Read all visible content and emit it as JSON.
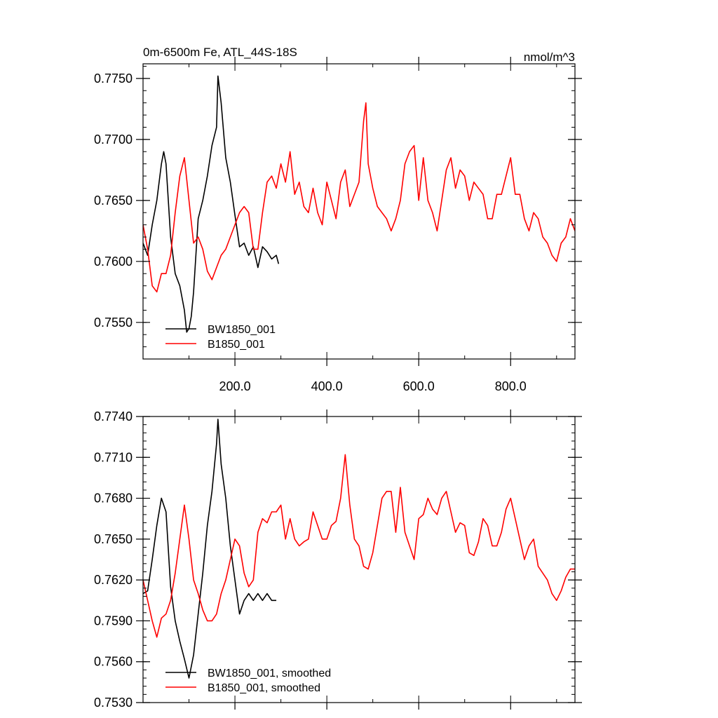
{
  "chart_data": [
    {
      "type": "line",
      "title": "0m-6500m Fe, ATL_44S-18S",
      "units": "nmol/m^3",
      "xlim": [
        0,
        940
      ],
      "ylim": [
        0.752,
        0.7762
      ],
      "x_ticks": [
        200,
        400,
        600,
        800
      ],
      "x_tick_labels": [
        "200.0",
        "400.0",
        "600.0",
        "800.0"
      ],
      "y_ticks": [
        0.755,
        0.76,
        0.765,
        0.77,
        0.775
      ],
      "y_tick_labels": [
        "0.7550",
        "0.7600",
        "0.7650",
        "0.7700",
        "0.7750"
      ],
      "legend_position": "bottom-left",
      "series": [
        {
          "name": "BW1850_001",
          "color": "#000000",
          "x": [
            0,
            10,
            20,
            30,
            40,
            45,
            50,
            55,
            60,
            70,
            80,
            90,
            95,
            100,
            105,
            110,
            120,
            130,
            140,
            150,
            160,
            163,
            170,
            180,
            190,
            200,
            210,
            220,
            230,
            240,
            250,
            260,
            270,
            280,
            290,
            295
          ],
          "y": [
            0.7615,
            0.7605,
            0.763,
            0.765,
            0.768,
            0.769,
            0.768,
            0.765,
            0.762,
            0.759,
            0.758,
            0.756,
            0.7542,
            0.7545,
            0.7555,
            0.7575,
            0.7635,
            0.765,
            0.767,
            0.7695,
            0.771,
            0.7752,
            0.773,
            0.7685,
            0.7665,
            0.7638,
            0.7612,
            0.7615,
            0.7605,
            0.7612,
            0.7595,
            0.7612,
            0.7608,
            0.7602,
            0.7605,
            0.7598
          ]
        },
        {
          "name": "B1850_001",
          "color": "#ff0000",
          "x": [
            0,
            10,
            20,
            30,
            40,
            50,
            60,
            70,
            80,
            90,
            100,
            110,
            120,
            130,
            140,
            150,
            160,
            170,
            180,
            190,
            200,
            210,
            220,
            230,
            240,
            250,
            260,
            270,
            280,
            290,
            300,
            310,
            320,
            330,
            340,
            350,
            360,
            370,
            380,
            390,
            400,
            410,
            420,
            430,
            440,
            450,
            460,
            470,
            480,
            485,
            490,
            500,
            510,
            520,
            530,
            540,
            550,
            560,
            570,
            580,
            590,
            600,
            610,
            620,
            630,
            640,
            650,
            660,
            670,
            680,
            690,
            700,
            710,
            720,
            730,
            740,
            750,
            760,
            770,
            780,
            790,
            800,
            810,
            820,
            830,
            840,
            850,
            860,
            870,
            880,
            890,
            900,
            910,
            920,
            930,
            940
          ],
          "y": [
            0.763,
            0.761,
            0.758,
            0.7575,
            0.759,
            0.759,
            0.7605,
            0.764,
            0.767,
            0.7685,
            0.765,
            0.7615,
            0.762,
            0.761,
            0.7592,
            0.7585,
            0.7595,
            0.7605,
            0.761,
            0.762,
            0.763,
            0.764,
            0.7645,
            0.764,
            0.761,
            0.761,
            0.764,
            0.7665,
            0.767,
            0.766,
            0.768,
            0.7665,
            0.769,
            0.7655,
            0.7665,
            0.7645,
            0.764,
            0.766,
            0.764,
            0.763,
            0.7665,
            0.765,
            0.7635,
            0.7665,
            0.7675,
            0.7645,
            0.7655,
            0.7665,
            0.7715,
            0.773,
            0.768,
            0.766,
            0.7645,
            0.764,
            0.7635,
            0.7625,
            0.7635,
            0.765,
            0.768,
            0.769,
            0.7695,
            0.765,
            0.7685,
            0.765,
            0.764,
            0.7625,
            0.765,
            0.7675,
            0.7685,
            0.766,
            0.7675,
            0.767,
            0.765,
            0.7665,
            0.766,
            0.7655,
            0.7635,
            0.7635,
            0.7655,
            0.7655,
            0.767,
            0.7685,
            0.7655,
            0.7655,
            0.7635,
            0.7625,
            0.764,
            0.7635,
            0.762,
            0.7615,
            0.7605,
            0.76,
            0.7615,
            0.762,
            0.7635,
            0.7625
          ]
        }
      ]
    },
    {
      "type": "line",
      "xlim": [
        0,
        940
      ],
      "ylim": [
        0.753,
        0.774
      ],
      "y_ticks": [
        0.753,
        0.756,
        0.759,
        0.762,
        0.765,
        0.768,
        0.771,
        0.774
      ],
      "y_tick_labels": [
        "0.7530",
        "0.7560",
        "0.7590",
        "0.7620",
        "0.7650",
        "0.7680",
        "0.7710",
        "0.7740"
      ],
      "legend_position": "bottom-left",
      "series": [
        {
          "name": "BW1850_001, smoothed",
          "color": "#000000",
          "x": [
            0,
            10,
            20,
            30,
            40,
            50,
            60,
            70,
            80,
            90,
            100,
            110,
            120,
            130,
            140,
            150,
            160,
            163,
            170,
            180,
            190,
            200,
            210,
            220,
            230,
            240,
            250,
            260,
            270,
            280,
            290
          ],
          "y": [
            0.761,
            0.7612,
            0.7635,
            0.766,
            0.768,
            0.767,
            0.7615,
            0.759,
            0.7575,
            0.7562,
            0.7548,
            0.7565,
            0.7595,
            0.7625,
            0.766,
            0.7685,
            0.772,
            0.7738,
            0.7705,
            0.768,
            0.7645,
            0.762,
            0.7595,
            0.7605,
            0.761,
            0.7605,
            0.761,
            0.7605,
            0.761,
            0.7605,
            0.7605
          ]
        },
        {
          "name": "B1850_001, smoothed",
          "color": "#ff0000",
          "x": [
            0,
            10,
            20,
            30,
            40,
            50,
            60,
            70,
            80,
            90,
            100,
            110,
            120,
            130,
            140,
            150,
            160,
            170,
            180,
            190,
            200,
            210,
            220,
            230,
            240,
            250,
            260,
            270,
            280,
            290,
            300,
            310,
            320,
            330,
            340,
            350,
            360,
            370,
            380,
            390,
            400,
            410,
            420,
            430,
            440,
            450,
            460,
            470,
            480,
            490,
            500,
            510,
            520,
            530,
            540,
            550,
            560,
            570,
            580,
            590,
            600,
            610,
            620,
            630,
            640,
            650,
            660,
            670,
            680,
            690,
            700,
            710,
            720,
            730,
            740,
            750,
            760,
            770,
            780,
            790,
            800,
            810,
            820,
            830,
            840,
            850,
            860,
            870,
            880,
            890,
            900,
            910,
            920,
            930,
            940
          ],
          "y": [
            0.762,
            0.7605,
            0.759,
            0.7578,
            0.7592,
            0.7595,
            0.7605,
            0.7625,
            0.765,
            0.7675,
            0.765,
            0.762,
            0.761,
            0.7598,
            0.759,
            0.759,
            0.7595,
            0.761,
            0.762,
            0.7635,
            0.765,
            0.7645,
            0.7625,
            0.7615,
            0.762,
            0.7655,
            0.7665,
            0.7662,
            0.767,
            0.767,
            0.7675,
            0.765,
            0.7665,
            0.765,
            0.7645,
            0.7648,
            0.765,
            0.767,
            0.766,
            0.765,
            0.765,
            0.766,
            0.7663,
            0.768,
            0.7712,
            0.7675,
            0.765,
            0.7645,
            0.763,
            0.7628,
            0.764,
            0.766,
            0.768,
            0.7685,
            0.7685,
            0.7655,
            0.7688,
            0.7655,
            0.7645,
            0.7635,
            0.7665,
            0.7668,
            0.768,
            0.7672,
            0.7668,
            0.768,
            0.7685,
            0.767,
            0.7655,
            0.7662,
            0.766,
            0.764,
            0.7638,
            0.7648,
            0.7665,
            0.766,
            0.7645,
            0.7645,
            0.7655,
            0.7672,
            0.768,
            0.7665,
            0.765,
            0.7635,
            0.7645,
            0.765,
            0.763,
            0.7625,
            0.762,
            0.761,
            0.7605,
            0.7612,
            0.7622,
            0.7628,
            0.7628
          ]
        }
      ]
    }
  ]
}
